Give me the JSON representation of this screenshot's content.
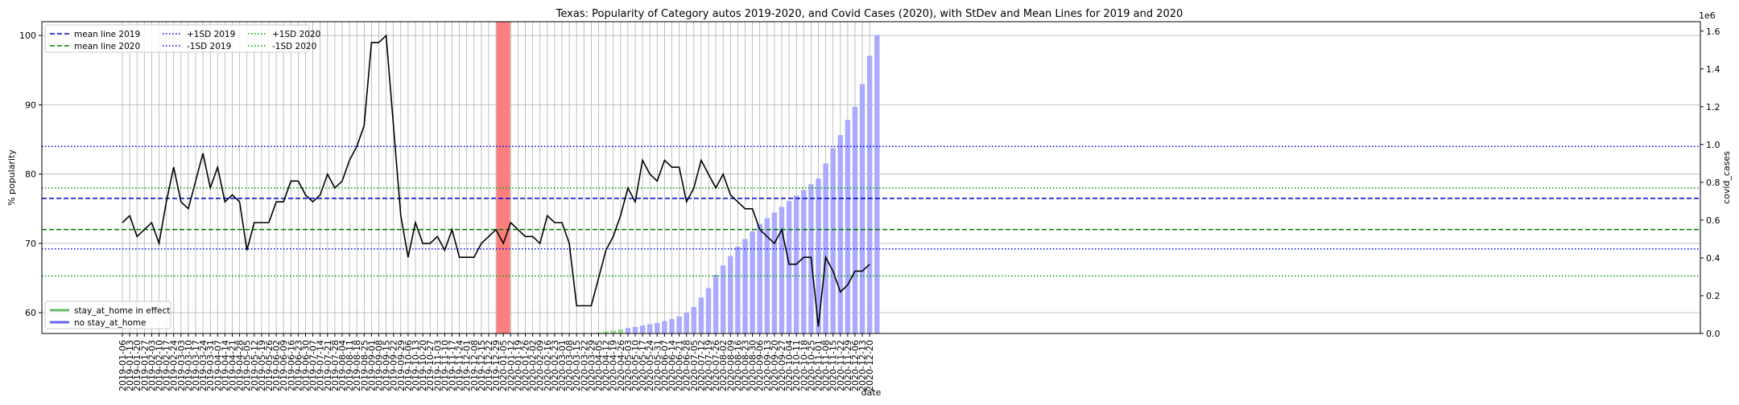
{
  "chart_data": {
    "type": "bar+line",
    "title": "Texas: Popularity of Category autos 2019-2020, and Covid Cases (2020), with StDev and Mean Lines for 2019 and 2020",
    "xlabel": "date",
    "ylabel_left": "% popularity",
    "ylabel_right": "covid_cases",
    "right_axis_multiplier": "1e6",
    "ylim_left": [
      57,
      102
    ],
    "ylim_right": [
      0,
      1.65
    ],
    "yticks_left": [
      "60",
      "70",
      "80",
      "90",
      "100"
    ],
    "yticks_right": [
      "0.0",
      "0.2",
      "0.4",
      "0.6",
      "0.8",
      "1.0",
      "1.2",
      "1.4",
      "1.6"
    ],
    "grid": true,
    "dates": [
      "2019-01-06",
      "2019-01-13",
      "2019-01-20",
      "2019-01-27",
      "2019-02-03",
      "2019-02-10",
      "2019-02-17",
      "2019-02-24",
      "2019-03-03",
      "2019-03-10",
      "2019-03-17",
      "2019-03-24",
      "2019-03-31",
      "2019-04-07",
      "2019-04-14",
      "2019-04-21",
      "2019-04-28",
      "2019-05-05",
      "2019-05-12",
      "2019-05-19",
      "2019-05-26",
      "2019-06-02",
      "2019-06-09",
      "2019-06-16",
      "2019-06-23",
      "2019-06-30",
      "2019-07-07",
      "2019-07-14",
      "2019-07-21",
      "2019-07-28",
      "2019-08-04",
      "2019-08-11",
      "2019-08-18",
      "2019-08-25",
      "2019-09-01",
      "2019-09-08",
      "2019-09-15",
      "2019-09-22",
      "2019-09-29",
      "2019-10-06",
      "2019-10-13",
      "2019-10-20",
      "2019-10-27",
      "2019-11-03",
      "2019-11-10",
      "2019-11-17",
      "2019-11-24",
      "2019-12-01",
      "2019-12-08",
      "2019-12-15",
      "2019-12-22",
      "2019-12-29",
      "2020-01-05",
      "2020-01-12",
      "2020-01-19",
      "2020-01-26",
      "2020-02-02",
      "2020-02-09",
      "2020-02-16",
      "2020-02-23",
      "2020-03-01",
      "2020-03-08",
      "2020-03-15",
      "2020-03-22",
      "2020-03-29",
      "2020-04-05",
      "2020-04-12",
      "2020-04-19",
      "2020-04-26",
      "2020-05-03",
      "2020-05-10",
      "2020-05-17",
      "2020-05-24",
      "2020-05-31",
      "2020-06-07",
      "2020-06-14",
      "2020-06-21",
      "2020-06-28",
      "2020-07-05",
      "2020-07-12",
      "2020-07-19",
      "2020-07-26",
      "2020-08-02",
      "2020-08-09",
      "2020-08-16",
      "2020-08-23",
      "2020-08-30",
      "2020-09-06",
      "2020-09-13",
      "2020-09-20",
      "2020-09-27",
      "2020-10-04",
      "2020-10-11",
      "2020-10-18",
      "2020-10-25",
      "2020-11-01",
      "2020-11-08",
      "2020-11-15",
      "2020-11-22",
      "2020-11-29",
      "2020-12-06",
      "2020-12-13",
      "2020-12-20"
    ],
    "popularity": [
      73,
      74,
      71,
      72,
      73,
      70,
      76,
      81,
      76,
      75,
      79,
      83,
      78,
      81,
      76,
      77,
      76,
      69,
      73,
      73,
      73,
      76,
      76,
      79,
      79,
      77,
      76,
      77,
      80,
      78,
      79,
      82,
      84,
      87,
      99,
      99,
      100,
      87,
      74,
      68,
      73,
      70,
      70,
      71,
      69,
      72,
      68,
      68,
      68,
      70,
      71,
      72,
      70,
      73,
      72,
      71,
      71,
      70,
      74,
      73,
      73,
      70,
      61,
      61,
      61,
      65,
      69,
      71,
      74,
      78,
      76,
      82,
      80,
      79,
      82,
      81,
      81,
      76,
      78,
      82,
      80,
      78,
      80,
      77,
      76,
      75,
      75,
      72,
      71,
      70,
      72,
      67,
      67,
      68,
      68,
      58,
      68,
      66,
      63,
      64,
      66,
      66,
      67
    ],
    "covid_cases": [
      0,
      0,
      0,
      0,
      0,
      0,
      0,
      0,
      0,
      0,
      0,
      0,
      0,
      0,
      0,
      0,
      0,
      0,
      0,
      0,
      0,
      0,
      0,
      0,
      0,
      0,
      0,
      0,
      0,
      0,
      0,
      0,
      0,
      0,
      0,
      0,
      0,
      0,
      0,
      0,
      0,
      0,
      0,
      0,
      0,
      0,
      0,
      0,
      0,
      0,
      0,
      0,
      0,
      0,
      0,
      0,
      0,
      0,
      0,
      0,
      0,
      0,
      0,
      0,
      0.001,
      0.005,
      0.011,
      0.016,
      0.022,
      0.029,
      0.035,
      0.042,
      0.049,
      0.056,
      0.066,
      0.077,
      0.09,
      0.11,
      0.14,
      0.19,
      0.24,
      0.31,
      0.36,
      0.41,
      0.46,
      0.5,
      0.54,
      0.58,
      0.61,
      0.64,
      0.67,
      0.7,
      0.73,
      0.76,
      0.79,
      0.82,
      0.9,
      0.98,
      1.05,
      1.13,
      1.2,
      1.32,
      1.47,
      1.58
    ],
    "bar_colors": {
      "no_stay_at_home": "#aaaaff",
      "stay_at_home": "#99dd99"
    },
    "stay_at_home_dates": [
      "2020-04-05",
      "2020-04-12",
      "2020-04-19",
      "2020-04-26"
    ],
    "highlight_date": "2020-01-05",
    "highlight_color": "#ff7f7f",
    "reference_lines": [
      {
        "name": "mean line 2019",
        "value": 76.5,
        "color": "#0000cc",
        "style": "dashed"
      },
      {
        "name": "mean line 2020",
        "value": 72.0,
        "color": "#007700",
        "style": "dashed"
      },
      {
        "name": "+1SD 2019",
        "value": 84.0,
        "color": "#0000ff",
        "style": "dotted"
      },
      {
        "name": "-1SD 2019",
        "value": 69.2,
        "color": "#0000ff",
        "style": "dotted"
      },
      {
        "name": "+1SD 2020",
        "value": 78.0,
        "color": "#009900",
        "style": "dotted"
      },
      {
        "name": "-1SD 2020",
        "value": 65.3,
        "color": "#009900",
        "style": "dotted"
      }
    ],
    "legend_top": [
      "mean line 2019",
      "mean line 2020",
      "+1SD 2019",
      "-1SD 2019",
      "+1SD 2020",
      "-1SD 2020"
    ],
    "legend_top_placement": "upper-left",
    "legend_bottom": [
      {
        "label": "stay_at_home in effect",
        "color": "#66bb66"
      },
      {
        "label": "no stay_at_home",
        "color": "#6666ee"
      }
    ],
    "legend_bottom_placement": "lower-left"
  }
}
